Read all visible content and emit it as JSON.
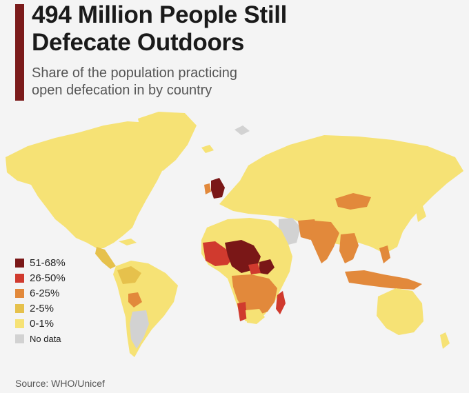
{
  "header": {
    "title_line1": "494 Million People Still",
    "title_line2": "Defecate Outdoors",
    "subtitle_line1": "Share of the population practicing",
    "subtitle_line2": "open defecation in by country"
  },
  "legend": {
    "items": [
      {
        "label": "51-68%",
        "color": "#7a1717"
      },
      {
        "label": "26-50%",
        "color": "#d03a2e"
      },
      {
        "label": "6-25%",
        "color": "#e2893b"
      },
      {
        "label": "2-5%",
        "color": "#e6c14c"
      },
      {
        "label": "0-1%",
        "color": "#f6e275"
      },
      {
        "label": "No data",
        "color": "#d2d2d2"
      }
    ]
  },
  "source": "Source: WHO/Unicef",
  "colors": {
    "accent": "#7b1b1b",
    "background": "#f4f4f4",
    "water": "#f4f4f4"
  }
}
